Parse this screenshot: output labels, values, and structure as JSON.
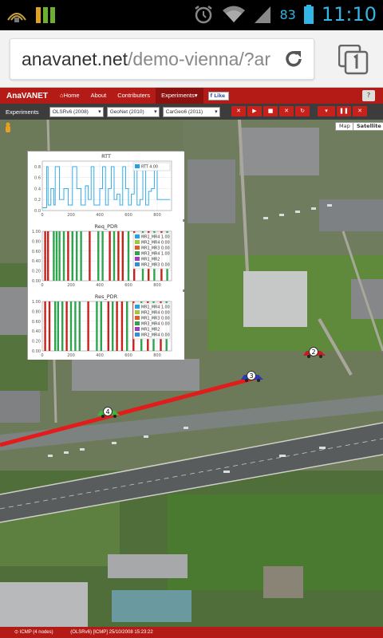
{
  "status_bar": {
    "battery_percent": "83",
    "time": "11:10",
    "colors": {
      "accent": "#33b5e5"
    }
  },
  "browser": {
    "url_host": "anavanet.net",
    "url_path": "/demo-vienna/?ar"
  },
  "app": {
    "brand": "AnaVANET",
    "nav": [
      {
        "label": "Home",
        "icon": "home-icon"
      },
      {
        "label": "About"
      },
      {
        "label": "Contributers"
      },
      {
        "label": "Experiments",
        "active": true
      }
    ],
    "fb_like_label": "Like",
    "help_label": "?",
    "toolbar": {
      "label": "Experiments",
      "selects": [
        "OLSRv6 (2008)",
        "GeoNet (2010)",
        "CarGeo6 (2011)"
      ]
    },
    "map_types": [
      "Map",
      "Satellite"
    ],
    "bottom_status": "(OLSRv6) [ICMP] 25/10/2008 15:23:22",
    "bottom_left": "ICMP (4 nodes)",
    "colors": {
      "brand_red": "#b51b16",
      "toolbar_bg": "#3c3c3c",
      "route_red": "#e21b1b"
    }
  },
  "map_markers": [
    {
      "label": "2",
      "icon": "car-icon"
    },
    {
      "label": "3",
      "icon": "car-icon"
    },
    {
      "label": "4",
      "icon": "car-icon"
    }
  ],
  "chart_data": [
    {
      "type": "line",
      "title": "RTT",
      "x_ticks": [
        "0",
        "200",
        "400",
        "600",
        "800"
      ],
      "y_ticks": [
        "0.0",
        "0.2",
        "0.4",
        "0.6",
        "0.8"
      ],
      "xlim": [
        0,
        900
      ],
      "ylim": [
        0,
        0.9
      ],
      "legend": [
        {
          "name": "RTT 4.00",
          "color": "#1fa3e6"
        }
      ],
      "legend_position": "top-right",
      "series": [
        {
          "name": "RTT 4.00",
          "color": "#1fa3e6",
          "x": [
            0,
            30,
            40,
            60,
            80,
            90,
            120,
            150,
            180,
            210,
            240,
            270,
            300,
            320,
            340,
            360,
            400,
            420,
            440,
            460,
            480,
            500,
            520,
            540,
            560,
            580,
            600,
            620,
            640,
            660,
            680,
            700,
            720,
            740,
            760,
            780,
            800,
            820,
            850,
            870,
            880,
            890
          ],
          "y": [
            0.05,
            0.8,
            0.1,
            0.4,
            0.1,
            0.8,
            0.2,
            0.4,
            0.1,
            0.8,
            0.4,
            0.1,
            0.45,
            0.2,
            0.8,
            0.1,
            0.4,
            0.8,
            0.1,
            0.4,
            0.8,
            0.2,
            0.3,
            0.1,
            0.8,
            0.4,
            0.1,
            0.3,
            0.8,
            0.1,
            0.2,
            0.8,
            0.1,
            0.35,
            0.4,
            0.8,
            0.2,
            0.2,
            0.2,
            0.2,
            0.2,
            0.2
          ]
        }
      ]
    },
    {
      "type": "bar",
      "title": "Req_PDR",
      "x_ticks": [
        "0",
        "200",
        "400",
        "600",
        "800"
      ],
      "y_ticks": [
        "0.00",
        "0.20",
        "0.40",
        "0.60",
        "0.80",
        "1.00"
      ],
      "xlim": [
        0,
        900
      ],
      "ylim": [
        0,
        1.0
      ],
      "legend_position": "top-right",
      "legend": [
        {
          "name": "MR1_MR4 1.00",
          "color": "#1fa3e6"
        },
        {
          "name": "MR2_MR4 0.00",
          "color": "#a0c83c"
        },
        {
          "name": "MR1_MR3 0.00",
          "color": "#e05a2a"
        },
        {
          "name": "MR3_MR4 1.00",
          "color": "#2ea44f"
        },
        {
          "name": "MR1_MR2",
          "color": "#9b3fbf"
        },
        {
          "name": "MR2_MR3 0.00",
          "color": "#2f8fd8"
        }
      ],
      "bars": [
        {
          "x": 20,
          "color": "#c8201a"
        },
        {
          "x": 40,
          "color": "#c8201a"
        },
        {
          "x": 80,
          "color": "#2ea44f"
        },
        {
          "x": 100,
          "color": "#2ea44f"
        },
        {
          "x": 120,
          "color": "#2ea44f"
        },
        {
          "x": 150,
          "color": "#2ea44f"
        },
        {
          "x": 180,
          "color": "#c8201a"
        },
        {
          "x": 210,
          "color": "#2ea44f"
        },
        {
          "x": 240,
          "color": "#2ea44f"
        },
        {
          "x": 270,
          "color": "#2ea44f"
        },
        {
          "x": 330,
          "color": "#c8201a"
        },
        {
          "x": 390,
          "color": "#2ea44f"
        },
        {
          "x": 420,
          "color": "#2ea44f"
        },
        {
          "x": 470,
          "color": "#c8201a"
        },
        {
          "x": 500,
          "color": "#2ea44f"
        },
        {
          "x": 530,
          "color": "#c8201a"
        },
        {
          "x": 560,
          "color": "#c8201a"
        },
        {
          "x": 600,
          "color": "#2ea44f"
        },
        {
          "x": 640,
          "color": "#c8201a"
        },
        {
          "x": 700,
          "color": "#2ea44f"
        },
        {
          "x": 740,
          "color": "#c8201a"
        },
        {
          "x": 780,
          "color": "#2ea44f"
        },
        {
          "x": 830,
          "color": "#c8201a"
        },
        {
          "x": 870,
          "color": "#2ea44f"
        }
      ]
    },
    {
      "type": "bar",
      "title": "Res_PDR",
      "x_ticks": [
        "0",
        "200",
        "400",
        "600",
        "800"
      ],
      "y_ticks": [
        "0.00",
        "0.20",
        "0.40",
        "0.60",
        "0.80",
        "1.00"
      ],
      "xlim": [
        0,
        900
      ],
      "ylim": [
        0,
        1.0
      ],
      "legend_position": "top-right",
      "legend": [
        {
          "name": "MR1_MR4 1.00",
          "color": "#1fa3e6"
        },
        {
          "name": "MR2_MR4 0.00",
          "color": "#a0c83c"
        },
        {
          "name": "MR1_MR3 0.00",
          "color": "#e05a2a"
        },
        {
          "name": "MR3_MR4 0.00",
          "color": "#2ea44f"
        },
        {
          "name": "MR1_MR2",
          "color": "#9b3fbf"
        },
        {
          "name": "MR2_MR4 0.00",
          "color": "#2f8fd8"
        }
      ],
      "bars": [
        {
          "x": 20,
          "color": "#c8201a"
        },
        {
          "x": 50,
          "color": "#c8201a"
        },
        {
          "x": 90,
          "color": "#2ea44f"
        },
        {
          "x": 110,
          "color": "#2ea44f"
        },
        {
          "x": 140,
          "color": "#2ea44f"
        },
        {
          "x": 170,
          "color": "#c8201a"
        },
        {
          "x": 200,
          "color": "#2ea44f"
        },
        {
          "x": 230,
          "color": "#2ea44f"
        },
        {
          "x": 260,
          "color": "#2ea44f"
        },
        {
          "x": 320,
          "color": "#c8201a"
        },
        {
          "x": 380,
          "color": "#2ea44f"
        },
        {
          "x": 410,
          "color": "#2ea44f"
        },
        {
          "x": 460,
          "color": "#c8201a"
        },
        {
          "x": 490,
          "color": "#2ea44f"
        },
        {
          "x": 520,
          "color": "#c8201a"
        },
        {
          "x": 555,
          "color": "#c8201a"
        },
        {
          "x": 590,
          "color": "#2ea44f"
        },
        {
          "x": 635,
          "color": "#c8201a"
        },
        {
          "x": 690,
          "color": "#2ea44f"
        },
        {
          "x": 735,
          "color": "#c8201a"
        },
        {
          "x": 775,
          "color": "#2ea44f"
        },
        {
          "x": 825,
          "color": "#c8201a"
        },
        {
          "x": 865,
          "color": "#2ea44f"
        }
      ]
    }
  ]
}
